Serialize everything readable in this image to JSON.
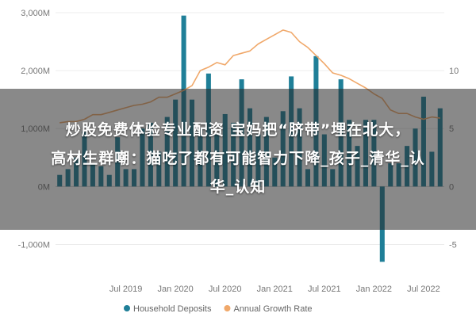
{
  "chart_data": {
    "type": "bar+line",
    "x": [
      "2018-11",
      "2018-12",
      "2019-01",
      "2019-02",
      "2019-03",
      "2019-04",
      "2019-05",
      "2019-06",
      "2019-07",
      "2019-08",
      "2019-09",
      "2019-10",
      "2019-11",
      "2019-12",
      "2020-01",
      "2020-02",
      "2020-03",
      "2020-04",
      "2020-05",
      "2020-06",
      "2020-07",
      "2020-08",
      "2020-09",
      "2020-10",
      "2020-11",
      "2020-12",
      "2021-01",
      "2021-02",
      "2021-03",
      "2021-04",
      "2021-05",
      "2021-06",
      "2021-07",
      "2021-08",
      "2021-09",
      "2021-10",
      "2021-11",
      "2021-12",
      "2022-01",
      "2022-02",
      "2022-03",
      "2022-04",
      "2022-05",
      "2022-06",
      "2022-07",
      "2022-08",
      "2022-09"
    ],
    "series": [
      {
        "name": "Household Deposits",
        "type": "bar",
        "axis": "left",
        "color": "#1f7f98",
        "values": [
          200,
          300,
          500,
          950,
          400,
          350,
          200,
          850,
          300,
          300,
          1000,
          1100,
          600,
          1200,
          1500,
          2950,
          1500,
          1000,
          1950,
          900,
          1250,
          1100,
          1850,
          1350,
          900,
          1200,
          500,
          1300,
          1900,
          1350,
          300,
          2250,
          900,
          300,
          1850,
          1150,
          700,
          1150,
          1150,
          -1300,
          400,
          400,
          700,
          1000,
          1550,
          600,
          1350
        ]
      },
      {
        "name": "Annual Growth Rate",
        "type": "line",
        "axis": "right",
        "color": "#f0a86a",
        "values": [
          5.5,
          5.6,
          5.6,
          5.8,
          6.2,
          6.2,
          6.4,
          6.6,
          6.8,
          7.0,
          7.1,
          7.3,
          7.7,
          7.7,
          8.0,
          8.3,
          8.7,
          10.0,
          10.3,
          10.7,
          10.5,
          11.3,
          11.5,
          11.7,
          12.3,
          12.7,
          13.1,
          13.5,
          13.3,
          12.5,
          12.0,
          11.3,
          10.6,
          9.8,
          9.6,
          9.3,
          8.9,
          8.5,
          8.0,
          7.6,
          6.6,
          6.3,
          6.3,
          6.0,
          5.8,
          6.0,
          5.9
        ]
      }
    ],
    "xticks": [
      {
        "x": "2019-07",
        "label": "Jul 2019"
      },
      {
        "x": "2020-01",
        "label": "Jan 2020"
      },
      {
        "x": "2020-07",
        "label": "Jul 2020"
      },
      {
        "x": "2021-01",
        "label": "Jan 2021"
      },
      {
        "x": "2021-07",
        "label": "Jul 2021"
      },
      {
        "x": "2022-01",
        "label": "Jan 2022"
      },
      {
        "x": "2022-07",
        "label": "Jul 2022"
      }
    ],
    "y_left": {
      "range": [
        -1500,
        3000
      ],
      "ticks": [
        {
          "v": 3000,
          "label": "3,000M"
        },
        {
          "v": 2000,
          "label": "2,000M"
        },
        {
          "v": 1000,
          "label": "1,000M"
        },
        {
          "v": 0,
          "label": "0M"
        },
        {
          "v": -1000,
          "label": "-1,000M"
        }
      ]
    },
    "y_right": {
      "range": [
        -7.5,
        15
      ],
      "ticks": [
        {
          "v": 10,
          "label": "10"
        },
        {
          "v": 5,
          "label": "5"
        },
        {
          "v": 0,
          "label": "0"
        },
        {
          "v": -5,
          "label": "-5"
        }
      ]
    },
    "legend_position": "bottom",
    "grid": "horizontal"
  },
  "overlay": {
    "headline_line1": "炒股免费体验专业配资 宝妈把“脐带”埋在北大，",
    "headline_line2": "高材生群嘲：猫吃了都有可能智力下降_孩子_清华_认",
    "headline_line3": "华_认知"
  }
}
